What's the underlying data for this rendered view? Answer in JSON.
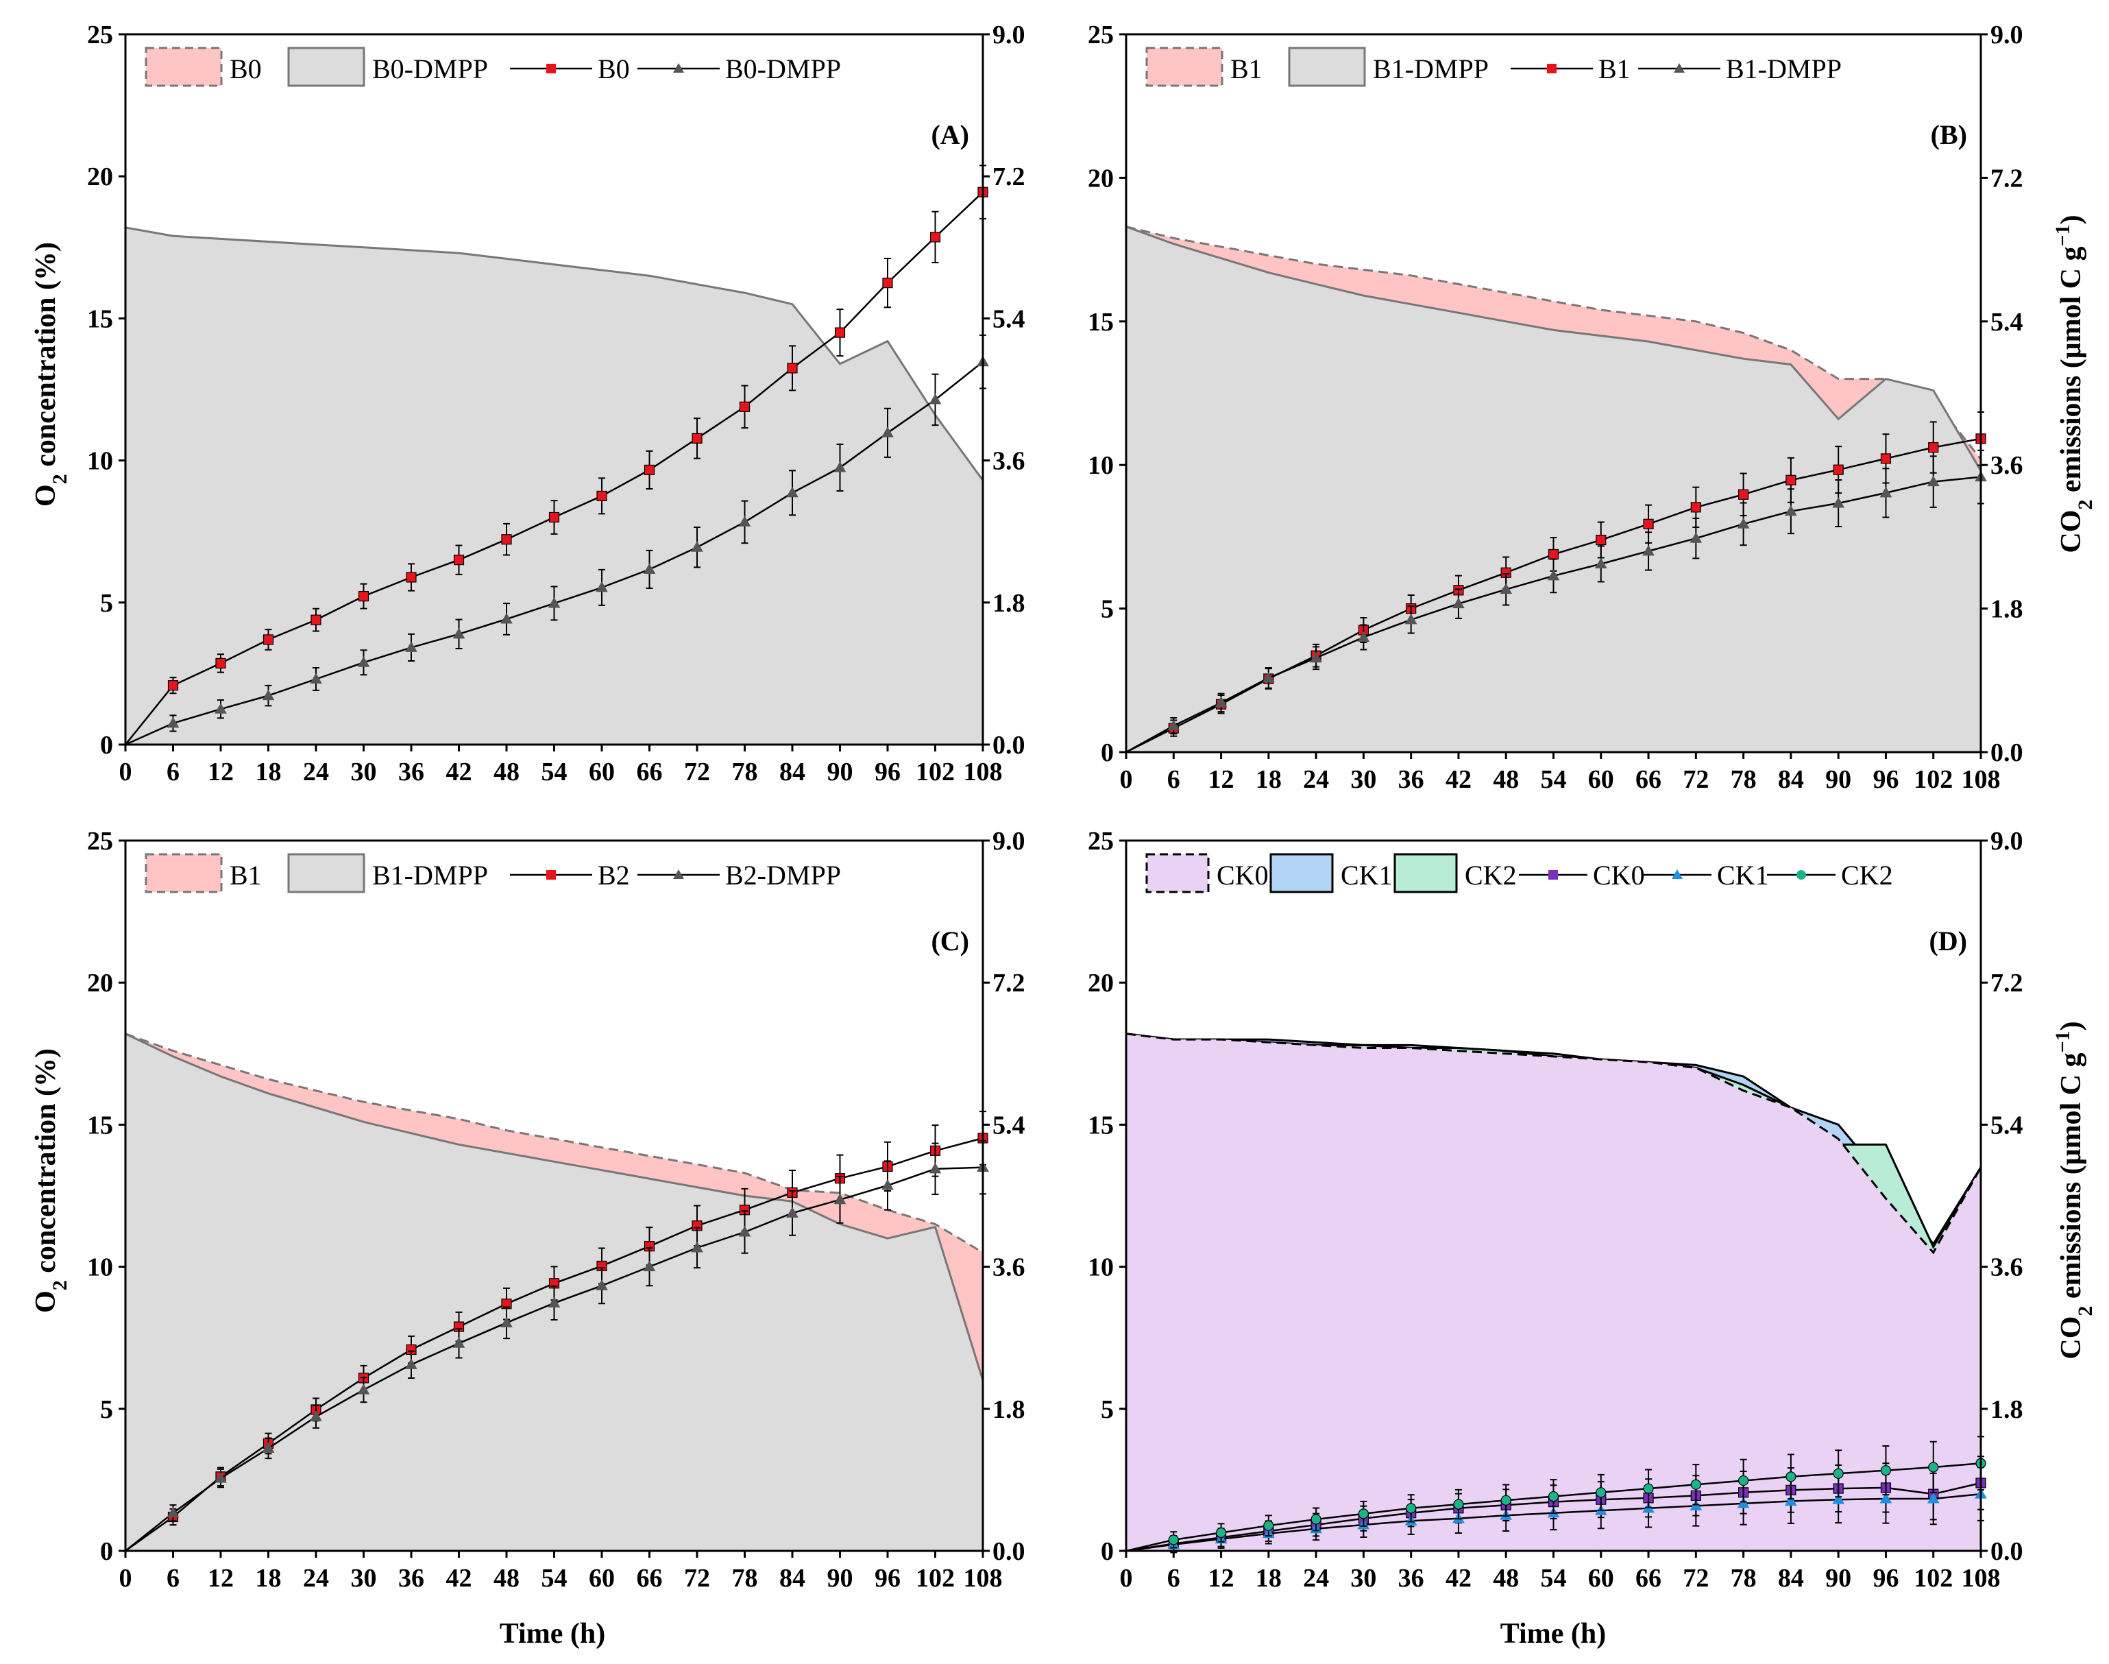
{
  "figure": {
    "ylabel_left": "O2 concentration (%)",
    "ylabel_right": "CO2 emissions (μmol C g−1)",
    "xlabel": "Time (h)"
  },
  "chart_data": [
    {
      "type": "area",
      "panel": "(A)",
      "x": [
        0,
        6,
        12,
        18,
        24,
        30,
        36,
        42,
        48,
        54,
        60,
        66,
        72,
        78,
        84,
        90,
        96,
        102,
        108
      ],
      "xticks": [
        "0",
        "6",
        "12",
        "18",
        "24",
        "30",
        "36",
        "42",
        "48",
        "54",
        "60",
        "66",
        "72",
        "78",
        "84",
        "90",
        "96",
        "102",
        "108"
      ],
      "ylim_left": [
        0,
        25
      ],
      "yticks_left": [
        "0",
        "5",
        "10",
        "15",
        "20",
        "25"
      ],
      "ylim_right": [
        0,
        9
      ],
      "yticks_right": [
        "0.0",
        "1.8",
        "3.6",
        "5.4",
        "7.2",
        "9.0"
      ],
      "legend": [
        "B0",
        "B0-DMPP",
        "B0",
        "B0-DMPP"
      ],
      "areas": [
        {
          "name": "B0",
          "fill": "#ffc4c4",
          "stroke": "#777777",
          "dash": true,
          "values": [
            18.2,
            17.8,
            17.7,
            17.6,
            17.5,
            17.4,
            17.2,
            17.0,
            16.7,
            16.4,
            16.1,
            15.9,
            15.7,
            15.1,
            13.5,
            10.7,
            12.6,
            9.8,
            6.8
          ]
        },
        {
          "name": "B0-DMPP",
          "fill": "#dcdcdc",
          "stroke": "#777777",
          "dash": false,
          "values": [
            18.2,
            17.9,
            17.8,
            17.7,
            17.6,
            17.5,
            17.4,
            17.3,
            17.1,
            16.9,
            16.7,
            16.5,
            16.2,
            15.9,
            15.5,
            13.4,
            14.2,
            11.6,
            9.3
          ]
        }
      ],
      "lines": [
        {
          "name": "B0",
          "color": "#e8141b",
          "marker": "square",
          "values": [
            0.0,
            0.75,
            1.03,
            1.33,
            1.58,
            1.88,
            2.12,
            2.34,
            2.6,
            2.88,
            3.15,
            3.48,
            3.88,
            4.28,
            4.77,
            5.22,
            5.85,
            6.43,
            7.0
          ]
        },
        {
          "name": "B0-DMPP",
          "color": "#555555",
          "marker": "triangle",
          "values": [
            0.0,
            0.27,
            0.45,
            0.62,
            0.83,
            1.04,
            1.23,
            1.4,
            1.59,
            1.79,
            1.99,
            2.22,
            2.5,
            2.82,
            3.19,
            3.51,
            3.95,
            4.37,
            4.85
          ]
        }
      ]
    },
    {
      "type": "area",
      "panel": "(B)",
      "x": [
        0,
        6,
        12,
        18,
        24,
        30,
        36,
        42,
        48,
        54,
        60,
        66,
        72,
        78,
        84,
        90,
        96,
        102,
        108
      ],
      "xticks": [
        "0",
        "6",
        "12",
        "18",
        "24",
        "30",
        "36",
        "42",
        "48",
        "54",
        "60",
        "66",
        "72",
        "78",
        "84",
        "90",
        "96",
        "102",
        "108"
      ],
      "ylim_left": [
        0,
        25
      ],
      "yticks_left": [
        "0",
        "5",
        "10",
        "15",
        "20",
        "25"
      ],
      "ylim_right": [
        0,
        9
      ],
      "yticks_right": [
        "0.0",
        "1.8",
        "3.6",
        "5.4",
        "7.2",
        "9.0"
      ],
      "legend": [
        "B1",
        "B1-DMPP",
        "B1",
        "B1-DMPP"
      ],
      "areas": [
        {
          "name": "B1",
          "fill": "#ffc4c4",
          "stroke": "#777777",
          "dash": true,
          "values": [
            18.3,
            17.9,
            17.6,
            17.3,
            17.0,
            16.8,
            16.6,
            16.3,
            16.0,
            15.7,
            15.4,
            15.2,
            15.0,
            14.6,
            14.0,
            13.0,
            13.0,
            12.3,
            10.2
          ]
        },
        {
          "name": "B1-DMPP",
          "fill": "#dcdcdc",
          "stroke": "#777777",
          "dash": false,
          "values": [
            18.3,
            17.7,
            17.2,
            16.7,
            16.3,
            15.9,
            15.6,
            15.3,
            15.0,
            14.7,
            14.5,
            14.3,
            14.0,
            13.7,
            13.5,
            11.6,
            13.0,
            12.6,
            9.8
          ]
        }
      ],
      "lines": [
        {
          "name": "B1",
          "color": "#e8141b",
          "marker": "square",
          "values": [
            0.0,
            0.3,
            0.6,
            0.92,
            1.21,
            1.53,
            1.8,
            2.03,
            2.25,
            2.48,
            2.66,
            2.86,
            3.07,
            3.23,
            3.41,
            3.54,
            3.68,
            3.82,
            3.93
          ]
        },
        {
          "name": "B1-DMPP",
          "color": "#555555",
          "marker": "triangle",
          "values": [
            0.0,
            0.33,
            0.62,
            0.93,
            1.18,
            1.44,
            1.66,
            1.86,
            2.04,
            2.21,
            2.36,
            2.52,
            2.68,
            2.86,
            3.02,
            3.12,
            3.25,
            3.39,
            3.45
          ]
        }
      ]
    },
    {
      "type": "area",
      "panel": "(C)",
      "x": [
        0,
        6,
        12,
        18,
        24,
        30,
        36,
        42,
        48,
        54,
        60,
        66,
        72,
        78,
        84,
        90,
        96,
        102,
        108
      ],
      "xticks": [
        "0",
        "6",
        "12",
        "18",
        "24",
        "30",
        "36",
        "42",
        "48",
        "54",
        "60",
        "66",
        "72",
        "78",
        "84",
        "90",
        "96",
        "102",
        "108"
      ],
      "ylim_left": [
        0,
        25
      ],
      "yticks_left": [
        "0",
        "5",
        "10",
        "15",
        "20",
        "25"
      ],
      "ylim_right": [
        0,
        9
      ],
      "yticks_right": [
        "0.0",
        "1.8",
        "3.6",
        "5.4",
        "7.2",
        "9.0"
      ],
      "legend": [
        "B1",
        "B1-DMPP",
        "B2",
        "B2-DMPP"
      ],
      "areas": [
        {
          "name": "B1",
          "fill": "#ffc4c4",
          "stroke": "#777777",
          "dash": true,
          "values": [
            18.2,
            17.6,
            17.1,
            16.6,
            16.2,
            15.8,
            15.5,
            15.2,
            14.8,
            14.5,
            14.2,
            13.9,
            13.6,
            13.3,
            12.7,
            12.6,
            12.0,
            11.5,
            10.5
          ]
        },
        {
          "name": "B1-DMPP",
          "fill": "#dcdcdc",
          "stroke": "#777777",
          "dash": false,
          "values": [
            18.2,
            17.4,
            16.7,
            16.1,
            15.6,
            15.1,
            14.7,
            14.3,
            14.0,
            13.7,
            13.4,
            13.1,
            12.8,
            12.5,
            12.3,
            11.5,
            11.0,
            11.4,
            6.0
          ]
        }
      ],
      "lines": [
        {
          "name": "B2",
          "color": "#e8141b",
          "marker": "square",
          "values": [
            0.0,
            0.43,
            0.94,
            1.36,
            1.79,
            2.19,
            2.55,
            2.84,
            3.13,
            3.39,
            3.61,
            3.86,
            4.12,
            4.32,
            4.54,
            4.72,
            4.87,
            5.07,
            5.23
          ]
        },
        {
          "name": "B2-DMPP",
          "color": "#555555",
          "marker": "triangle",
          "values": [
            0.0,
            0.48,
            0.92,
            1.3,
            1.7,
            2.04,
            2.36,
            2.63,
            2.89,
            3.14,
            3.36,
            3.6,
            3.84,
            4.04,
            4.28,
            4.45,
            4.63,
            4.84,
            4.86
          ]
        }
      ]
    },
    {
      "type": "area",
      "panel": "(D)",
      "x": [
        0,
        6,
        12,
        18,
        24,
        30,
        36,
        42,
        48,
        54,
        60,
        66,
        72,
        78,
        84,
        90,
        96,
        102,
        108
      ],
      "xticks": [
        "0",
        "6",
        "12",
        "18",
        "24",
        "30",
        "36",
        "42",
        "48",
        "54",
        "60",
        "66",
        "72",
        "78",
        "84",
        "90",
        "96",
        "102",
        "108"
      ],
      "ylim_left": [
        0,
        25
      ],
      "yticks_left": [
        "0",
        "5",
        "10",
        "15",
        "20",
        "25"
      ],
      "ylim_right": [
        0,
        9
      ],
      "yticks_right": [
        "0.0",
        "1.8",
        "3.6",
        "5.4",
        "7.2",
        "9.0"
      ],
      "legend": [
        "CK0",
        "CK1",
        "CK2",
        "CK0",
        "CK1",
        "CK2"
      ],
      "areas": [
        {
          "name": "CK1",
          "fill": "#b2d4f5",
          "stroke": "#000000",
          "dash": false,
          "values": [
            18.2,
            18.0,
            18.0,
            18.0,
            17.9,
            17.8,
            17.8,
            17.7,
            17.6,
            17.5,
            17.3,
            17.2,
            17.1,
            16.7,
            15.6,
            15.0,
            13.0,
            10.8,
            13.5
          ]
        },
        {
          "name": "CK2",
          "fill": "#b8ecd4",
          "stroke": "#000000",
          "dash": false,
          "values": [
            18.2,
            18.0,
            18.0,
            17.9,
            17.8,
            17.8,
            17.7,
            17.7,
            17.6,
            17.4,
            17.3,
            17.2,
            17.0,
            16.4,
            15.6,
            14.3,
            14.3,
            10.7,
            13.5
          ]
        },
        {
          "name": "CK0",
          "fill": "#ead2f4",
          "stroke": "#000000",
          "dash": true,
          "values": [
            18.2,
            18.0,
            18.0,
            17.9,
            17.8,
            17.7,
            17.7,
            17.6,
            17.5,
            17.4,
            17.3,
            17.2,
            17.0,
            16.2,
            15.6,
            14.5,
            12.4,
            10.5,
            13.5
          ]
        }
      ],
      "lines": [
        {
          "name": "CK0",
          "color": "#7b2fbe",
          "marker": "square",
          "values": [
            0.0,
            0.09,
            0.17,
            0.25,
            0.33,
            0.41,
            0.48,
            0.54,
            0.58,
            0.62,
            0.65,
            0.67,
            0.7,
            0.74,
            0.77,
            0.79,
            0.8,
            0.72,
            0.86
          ]
        },
        {
          "name": "CK1",
          "color": "#1f8fe0",
          "marker": "triangle",
          "values": [
            0.0,
            0.08,
            0.15,
            0.22,
            0.28,
            0.33,
            0.38,
            0.41,
            0.45,
            0.48,
            0.51,
            0.54,
            0.57,
            0.6,
            0.63,
            0.65,
            0.66,
            0.66,
            0.72
          ]
        },
        {
          "name": "CK2",
          "color": "#18b686",
          "marker": "circle",
          "values": [
            0.0,
            0.14,
            0.23,
            0.32,
            0.4,
            0.47,
            0.54,
            0.59,
            0.64,
            0.69,
            0.74,
            0.79,
            0.84,
            0.89,
            0.94,
            0.98,
            1.02,
            1.06,
            1.11
          ]
        }
      ]
    }
  ]
}
